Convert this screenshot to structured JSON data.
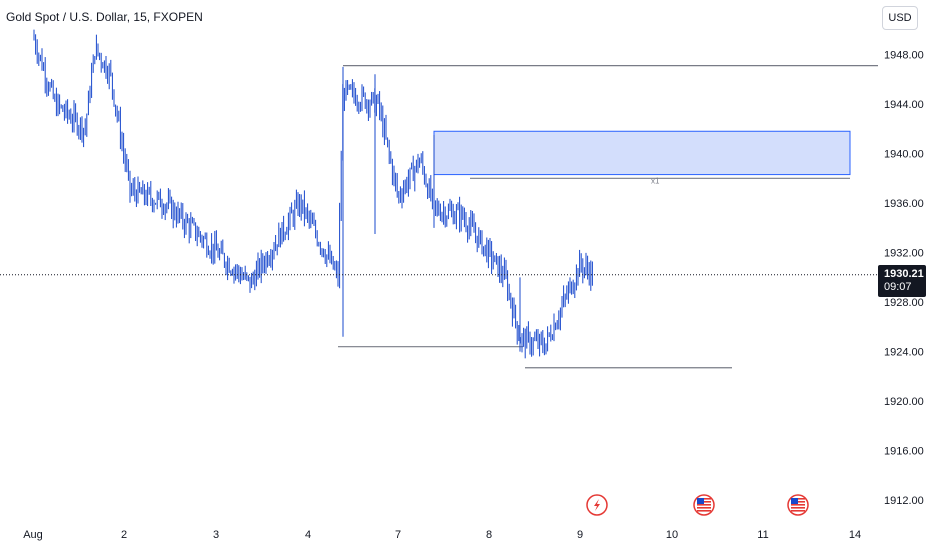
{
  "header": {
    "symbol_title": "Gold Spot / U.S. Dollar, 15, FXOPEN"
  },
  "toolbar": {
    "currency_label": "USD"
  },
  "price_badge": {
    "price": "1930.21",
    "countdown": "09:07"
  },
  "colors": {
    "candle": "#1848cc",
    "zone_fill": "#d3defc",
    "zone_border": "#2962ff",
    "line": "#787b86",
    "event_red": "#e53935"
  },
  "events": [
    {
      "name": "lightning-icon",
      "date": "9"
    },
    {
      "name": "us-flag-icon",
      "date": "10"
    },
    {
      "name": "us-flag-icon",
      "date": "11"
    }
  ],
  "chart_data": {
    "type": "candlestick",
    "title": "Gold Spot / U.S. Dollar, 15, FXOPEN",
    "xlabel": "",
    "ylabel": "",
    "ylim": [
      1910,
      1950
    ],
    "y_ticks": [
      "1948.00",
      "1944.00",
      "1940.00",
      "1936.00",
      "1932.00",
      "1928.00",
      "1924.00",
      "1920.00",
      "1916.00",
      "1912.00"
    ],
    "x_ticks": [
      "Aug",
      "2",
      "3",
      "4",
      "7",
      "8",
      "9",
      "10",
      "11",
      "14"
    ],
    "last_price": 1930.21,
    "grid": false,
    "anchors": [
      {
        "x": "Aug",
        "y": 1949.5
      },
      {
        "x": "Aug",
        "y": 1944.0
      },
      {
        "x": "Aug",
        "y": 1942.0
      },
      {
        "x": "2",
        "y": 1948.5
      },
      {
        "x": "2",
        "y": 1946.5
      },
      {
        "x": "2",
        "y": 1937.0
      },
      {
        "x": "3",
        "y": 1936.0
      },
      {
        "x": "3",
        "y": 1929.5
      },
      {
        "x": "4",
        "y": 1936.0
      },
      {
        "x": "4",
        "y": 1930.0
      },
      {
        "x": "4",
        "y": 1945.0
      },
      {
        "x": "7",
        "y": 1944.0
      },
      {
        "x": "7",
        "y": 1936.5
      },
      {
        "x": "7",
        "y": 1939.5
      },
      {
        "x": "7",
        "y": 1935.5
      },
      {
        "x": "8",
        "y": 1935.0
      },
      {
        "x": "8",
        "y": 1930.0
      },
      {
        "x": "8",
        "y": 1925.0
      },
      {
        "x": "8",
        "y": 1924.5
      },
      {
        "x": "9",
        "y": 1931.0
      },
      {
        "x": "9",
        "y": 1930.21
      }
    ],
    "horizontal_lines": [
      {
        "y": 1947.1,
        "from": "4",
        "to": "14"
      },
      {
        "y": 1924.4,
        "from": "4",
        "to": "8"
      },
      {
        "y": 1922.7,
        "from": "8",
        "to": "10"
      },
      {
        "y": 1938.0,
        "from": "8",
        "to": "14"
      }
    ],
    "zones": [
      {
        "y_low": 1938.3,
        "y_high": 1941.8,
        "from": "7",
        "to": "14",
        "label": "x1"
      }
    ]
  }
}
